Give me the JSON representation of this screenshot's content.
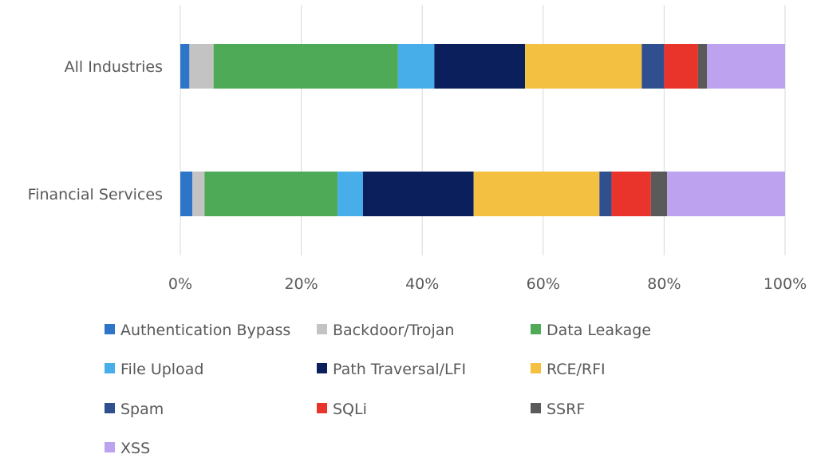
{
  "chart_data": {
    "type": "bar",
    "orientation": "horizontal",
    "stacked": "percent",
    "title": "",
    "xlabel": "",
    "ylabel": "",
    "xlim": [
      0,
      100
    ],
    "x_ticks": [
      0,
      20,
      40,
      60,
      80,
      100
    ],
    "x_tick_labels": [
      "0%",
      "20%",
      "40%",
      "60%",
      "80%",
      "100%"
    ],
    "grid": true,
    "legend_position": "bottom",
    "categories": [
      "All Industries",
      "Financial Services"
    ],
    "series": [
      {
        "name": "Authentication Bypass",
        "color": "#2e75c8",
        "values": [
          1.5,
          2.0
        ]
      },
      {
        "name": "Backdoor/Trojan",
        "color": "#c3c3c3",
        "values": [
          4.0,
          2.0
        ]
      },
      {
        "name": "Data Leakage",
        "color": "#4faa58",
        "values": [
          30.5,
          22.0
        ]
      },
      {
        "name": "File Upload",
        "color": "#47aeea",
        "values": [
          6.0,
          4.2
        ]
      },
      {
        "name": "Path Traversal/LFI",
        "color": "#0b1f5c",
        "values": [
          15.0,
          18.3
        ]
      },
      {
        "name": "RCE/RFI",
        "color": "#f4c042",
        "values": [
          19.3,
          20.8
        ]
      },
      {
        "name": "Spam",
        "color": "#2f4f8f",
        "values": [
          3.7,
          2.0
        ]
      },
      {
        "name": "SQLi",
        "color": "#e8342a",
        "values": [
          5.6,
          6.5
        ]
      },
      {
        "name": "SSRF",
        "color": "#5a5a5a",
        "values": [
          1.5,
          2.7
        ]
      },
      {
        "name": "XSS",
        "color": "#bca2ef",
        "values": [
          12.9,
          19.5
        ]
      }
    ]
  }
}
